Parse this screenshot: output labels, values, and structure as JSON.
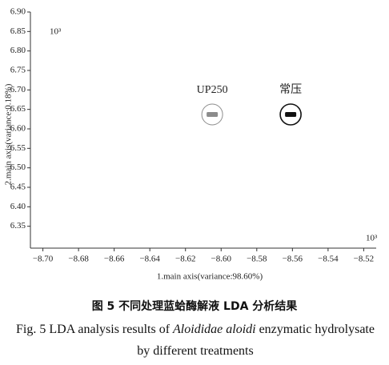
{
  "chart_data": {
    "type": "scatter",
    "xlabel": "1.main axis(variance:98.60%)",
    "ylabel": "2.main axis(variance:0.18%)",
    "x_multiplier": "10³",
    "y_multiplier": "10³",
    "xlim": [
      -8.707,
      -8.513
    ],
    "ylim": [
      6.3,
      6.9
    ],
    "xticks": [
      {
        "value": -8.7,
        "label": "−8.70"
      },
      {
        "value": -8.68,
        "label": "−8.68"
      },
      {
        "value": -8.66,
        "label": "−8.66"
      },
      {
        "value": -8.64,
        "label": "−8.64"
      },
      {
        "value": -8.62,
        "label": "−8.62"
      },
      {
        "value": -8.6,
        "label": "−8.60"
      },
      {
        "value": -8.58,
        "label": "−8.58"
      },
      {
        "value": -8.56,
        "label": "−8.56"
      },
      {
        "value": -8.54,
        "label": "−8.54"
      },
      {
        "value": -8.52,
        "label": "−8.52"
      }
    ],
    "yticks": [
      6.35,
      {
        "value": 6.4,
        "label": "6.40"
      },
      6.45,
      {
        "value": 6.5,
        "label": "6.50"
      },
      6.55,
      {
        "value": 6.6,
        "label": "6.60"
      },
      6.65,
      {
        "value": 6.7,
        "label": "6.70"
      },
      6.75,
      {
        "value": 6.8,
        "label": "6.80"
      },
      6.85,
      {
        "value": 6.9,
        "label": "6.90"
      }
    ],
    "series": [
      {
        "name": "UP250",
        "color": "#8c8c8c",
        "x": [
          -8.605
        ],
        "y": [
          6.637
        ]
      },
      {
        "name": "常压",
        "color": "#111111",
        "x": [
          -8.561
        ],
        "y": [
          6.637
        ]
      }
    ]
  },
  "caption": {
    "cn": "图 5   不同处理蓝蛤酶解液 LDA 分析结果",
    "en_prefix": "Fig. 5 LDA analysis results of",
    "en_species": "Aloididae aloidi",
    "en_suffix": "enzymatic hydrolysate by different treatments"
  }
}
